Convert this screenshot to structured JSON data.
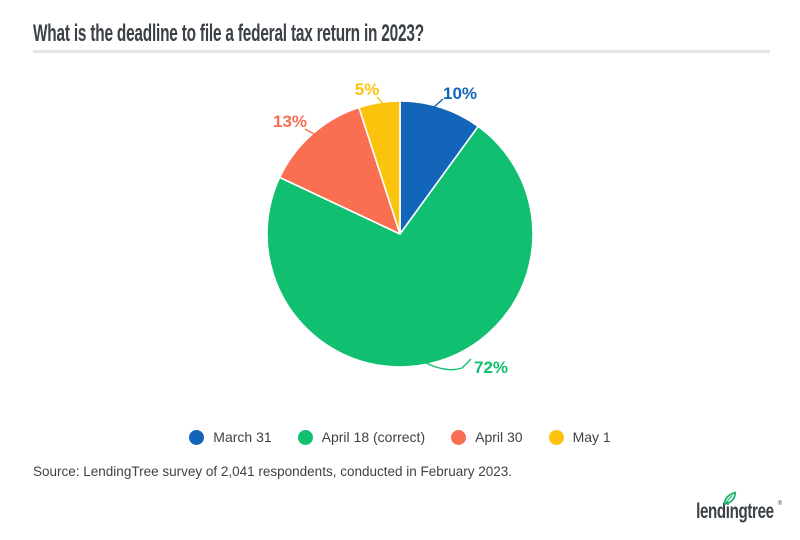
{
  "header": {
    "title": "What is the deadline to file a federal tax return in 2023?"
  },
  "chart_data": {
    "type": "pie",
    "title": "What is the deadline to file a federal tax return in 2023?",
    "categories": [
      "March 31",
      "April 18 (correct)",
      "April 30",
      "May 1"
    ],
    "values": [
      10,
      72,
      13,
      5
    ],
    "unit": "%",
    "colors": [
      "#1265B9",
      "#10BF70",
      "#FA6E51",
      "#FCC30D"
    ],
    "start_angle": "top, clockwise",
    "legend_position": "bottom",
    "slice_labels": [
      "10%",
      "72%",
      "13%",
      "5%"
    ]
  },
  "legend": {
    "items": [
      {
        "label": "March 31",
        "color": "#1265B9"
      },
      {
        "label": "April 18 (correct)",
        "color": "#10BF70"
      },
      {
        "label": "April 30",
        "color": "#FA6E51"
      },
      {
        "label": "May 1",
        "color": "#FCC30D"
      }
    ]
  },
  "source": {
    "text": "Source: LendingTree survey of 2,041 respondents, conducted in February 2023."
  },
  "logo": {
    "text": "lendingtree",
    "registered_mark": "®",
    "leaf_color": "#21B573"
  }
}
